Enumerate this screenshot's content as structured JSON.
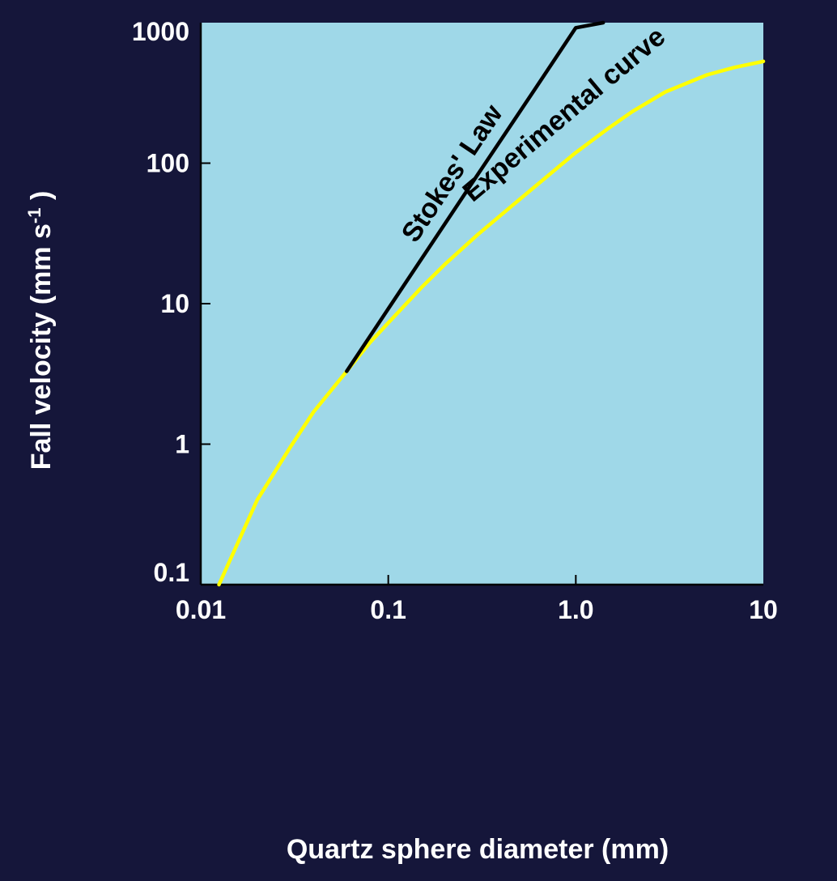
{
  "chart_data": {
    "type": "line",
    "xlabel": "Quartz sphere diameter (mm)",
    "ylabel_main": "Fall velocity (mm s",
    "ylabel_sup": "-1",
    "ylabel_tail": " )",
    "x_scale": "log",
    "y_scale": "log",
    "xlim": [
      0.01,
      10
    ],
    "ylim": [
      0.1,
      1000
    ],
    "x_ticks": [
      {
        "value": 0.01,
        "label": "0.01"
      },
      {
        "value": 0.1,
        "label": "0.1"
      },
      {
        "value": 1,
        "label": "1.0"
      },
      {
        "value": 10,
        "label": "10"
      }
    ],
    "y_ticks": [
      {
        "value": 0.1,
        "label": "0.1"
      },
      {
        "value": 1,
        "label": "1"
      },
      {
        "value": 10,
        "label": "10"
      },
      {
        "value": 100,
        "label": "100"
      },
      {
        "value": 1000,
        "label": "1000"
      }
    ],
    "grid": false,
    "legend": "none",
    "series": [
      {
        "name": "Stokes' Law",
        "color": "#000000",
        "x": [
          0.06,
          0.1,
          0.3,
          0.6,
          1.0,
          1.4
        ],
        "y": [
          3.3,
          9.2,
          83,
          330,
          920,
          1000
        ]
      },
      {
        "name": "Experimental curve",
        "color": "#ffff00",
        "x": [
          0.0125,
          0.02,
          0.03,
          0.04,
          0.06,
          0.08,
          0.1,
          0.15,
          0.2,
          0.3,
          0.5,
          0.8,
          1.0,
          1.5,
          2,
          3,
          5,
          7,
          10
        ],
        "y": [
          0.1,
          0.4,
          0.95,
          1.7,
          3.3,
          5.3,
          7.3,
          13,
          19,
          31,
          55,
          93,
          119,
          178,
          233,
          321,
          425,
          480,
          530
        ]
      }
    ],
    "annotations": [
      {
        "text": "Stokes' Law",
        "series": 0
      },
      {
        "text": "Experimental curve",
        "series": 1
      }
    ],
    "colors": {
      "background": "#15163a",
      "plot_area": "#9fd8e8",
      "axis": "#000000",
      "text": "#000000",
      "outer_text": "#ffffff"
    }
  }
}
